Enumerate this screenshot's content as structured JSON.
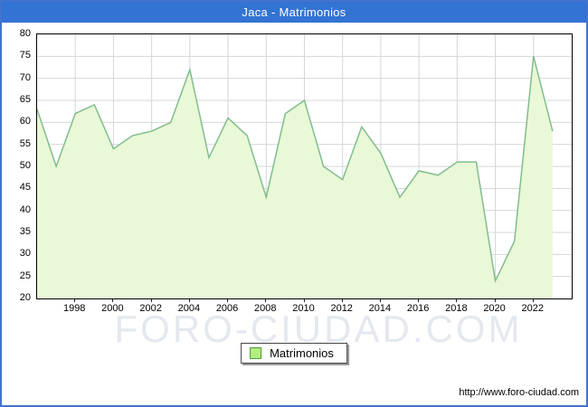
{
  "title": "Jaca - Matrimonios",
  "watermark": "FORO-CIUDAD.COM",
  "legend": {
    "label": "Matrimonios"
  },
  "footer": {
    "url": "http://www.foro-ciudad.com"
  },
  "colors": {
    "titlebar": "#3273d4",
    "frame": "#4273cc",
    "line": "#80bd8e",
    "fill": "#e9f8d6",
    "grid": "#d6d6d6",
    "legend_swatch_fill": "#b3ec7e",
    "legend_swatch_border": "#4e9a3c"
  },
  "chart_data": {
    "type": "area",
    "title": "Jaca - Matrimonios",
    "series_name": "Matrimonios",
    "x": [
      1996,
      1997,
      1998,
      1999,
      2000,
      2001,
      2002,
      2003,
      2004,
      2005,
      2006,
      2007,
      2008,
      2009,
      2010,
      2011,
      2012,
      2013,
      2014,
      2015,
      2016,
      2017,
      2018,
      2019,
      2020,
      2021,
      2022,
      2023
    ],
    "values": [
      63,
      50,
      62,
      64,
      54,
      57,
      58,
      60,
      72,
      52,
      61,
      57,
      43,
      62,
      65,
      50,
      47,
      59,
      53,
      43,
      49,
      48,
      51,
      51,
      24,
      33,
      75,
      58
    ],
    "ylim": [
      20,
      80
    ],
    "xlim": [
      1996,
      2024
    ],
    "yticks": [
      20,
      25,
      30,
      35,
      40,
      45,
      50,
      55,
      60,
      65,
      70,
      75,
      80
    ],
    "xticks": [
      1998,
      2000,
      2002,
      2004,
      2006,
      2008,
      2010,
      2012,
      2014,
      2016,
      2018,
      2020,
      2022
    ],
    "grid": true,
    "legend_position": "bottom-center"
  }
}
